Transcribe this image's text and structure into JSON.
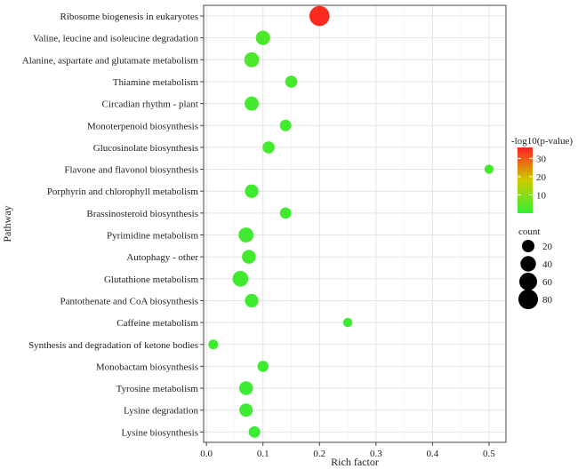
{
  "chart_data": {
    "type": "scatter",
    "xlabel": "Rich factor",
    "ylabel": "Pathway",
    "xlim": [
      -0.005,
      0.53
    ],
    "xticks": [
      "0.0",
      "0.1",
      "0.2",
      "0.3",
      "0.4",
      "0.5"
    ],
    "grid": true,
    "color_legend": {
      "title": "-log10(p-value)",
      "ticks": [
        "10",
        "20",
        "30"
      ],
      "min": 0,
      "max": 36,
      "low_color": "#33ee33",
      "mid_color": "#cccc00",
      "high_color": "#ff2020"
    },
    "size_legend": {
      "title": "count",
      "values": [
        20,
        40,
        60,
        80
      ],
      "labels": [
        "20",
        "40",
        "60",
        "80"
      ]
    },
    "points": [
      {
        "pathway": "Ribosome biogenesis in eukaryotes",
        "rich_factor": 0.2,
        "count": 85,
        "neglog10p": 35
      },
      {
        "pathway": "Valine, leucine and isoleucine degradation",
        "rich_factor": 0.1,
        "count": 32,
        "neglog10p": 3
      },
      {
        "pathway": "Alanine, aspartate and glutamate metabolism",
        "rich_factor": 0.08,
        "count": 36,
        "neglog10p": 3
      },
      {
        "pathway": "Thiamine metabolism",
        "rich_factor": 0.15,
        "count": 18,
        "neglog10p": 2.5
      },
      {
        "pathway": "Circadian rhythm - plant",
        "rich_factor": 0.08,
        "count": 30,
        "neglog10p": 2
      },
      {
        "pathway": "Monoterpenoid biosynthesis",
        "rich_factor": 0.14,
        "count": 15,
        "neglog10p": 2
      },
      {
        "pathway": "Glucosinolate biosynthesis",
        "rich_factor": 0.11,
        "count": 18,
        "neglog10p": 2
      },
      {
        "pathway": "Flavone and flavonol biosynthesis",
        "rich_factor": 0.5,
        "count": 6,
        "neglog10p": 2.5
      },
      {
        "pathway": "Porphyrin and chlorophyll metabolism",
        "rich_factor": 0.08,
        "count": 26,
        "neglog10p": 1.5
      },
      {
        "pathway": "Brassinosteroid biosynthesis",
        "rich_factor": 0.14,
        "count": 14,
        "neglog10p": 1.5
      },
      {
        "pathway": "Pyrimidine metabolism",
        "rich_factor": 0.07,
        "count": 36,
        "neglog10p": 1.5
      },
      {
        "pathway": "Autophagy - other",
        "rich_factor": 0.075,
        "count": 28,
        "neglog10p": 1.5
      },
      {
        "pathway": "Glutathione metabolism",
        "rich_factor": 0.06,
        "count": 42,
        "neglog10p": 1.5
      },
      {
        "pathway": "Pantothenate and CoA biosynthesis",
        "rich_factor": 0.08,
        "count": 26,
        "neglog10p": 1.3
      },
      {
        "pathway": "Caffeine metabolism",
        "rich_factor": 0.25,
        "count": 6,
        "neglog10p": 1.3
      },
      {
        "pathway": "Synthesis and degradation of ketone bodies",
        "rich_factor": 0.012,
        "count": 8,
        "neglog10p": 1.3
      },
      {
        "pathway": "Monobactam biosynthesis",
        "rich_factor": 0.1,
        "count": 13,
        "neglog10p": 1.2
      },
      {
        "pathway": "Tyrosine metabolism",
        "rich_factor": 0.07,
        "count": 28,
        "neglog10p": 1.2
      },
      {
        "pathway": "Lysine degradation",
        "rich_factor": 0.07,
        "count": 25,
        "neglog10p": 1.2
      },
      {
        "pathway": "Lysine biosynthesis",
        "rich_factor": 0.085,
        "count": 15,
        "neglog10p": 1.2
      }
    ]
  }
}
